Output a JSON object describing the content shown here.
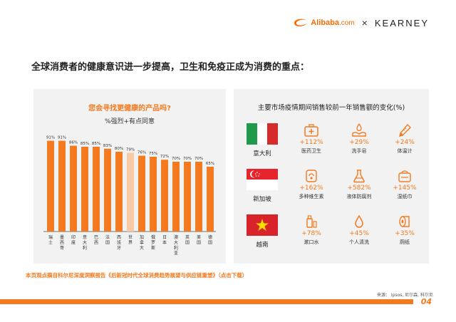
{
  "header": {
    "alibaba_brand": "Alibaba",
    "alibaba_suffix": ".com",
    "separator": "×",
    "partner": "KEARNEY"
  },
  "headline": "全球消费者的健康意识进一步提高，卫生和免疫正成为消费的重点：",
  "left_panel": {
    "title": "您会寻找更健康的产品吗?",
    "subtitle": "%强烈+有点同意"
  },
  "chart_data": {
    "type": "bar",
    "title": "您会寻找更健康的产品吗?",
    "subtitle": "%强烈+有点同意",
    "categories": [
      "瑞士",
      "墨西哥",
      "印度",
      "意大利",
      "巴西",
      "法国",
      "西班牙",
      "世界",
      "加拿大",
      "俄罗斯",
      "日本",
      "澳大利亚",
      "英国",
      "美国",
      "德国"
    ],
    "values": [
      91,
      91,
      86,
      85,
      85,
      83,
      80,
      79,
      76,
      75,
      72,
      70,
      70,
      70,
      65
    ],
    "value_labels": [
      "91%",
      "91%",
      "86%",
      "85%",
      "85%",
      "83%",
      "80%",
      "79%",
      "76%",
      "75%",
      "72%",
      "70%",
      "70%",
      "70%",
      "65%"
    ],
    "highlight_index": 7,
    "colors": {
      "bar": "#f47a1f",
      "highlight": "#f9c9a2"
    },
    "ylim": [
      0,
      100
    ],
    "grid": false
  },
  "right_panel": {
    "title": "主要市场疫情期间销售较前一年销售额的变化(%)",
    "countries": [
      {
        "name": "意大利",
        "flag": "italy",
        "metrics": [
          {
            "icon": "first-aid-kit-icon",
            "value": "+112%",
            "label": "医药卫生"
          },
          {
            "icon": "hand-wash-icon",
            "value": "+29%",
            "label": "洗手皂"
          },
          {
            "icon": "thermometer-icon",
            "value": "+24%",
            "label": "体温计"
          }
        ]
      },
      {
        "name": "新加坡",
        "flag": "singapore",
        "metrics": [
          {
            "icon": "pill-icon",
            "value": "+162%",
            "label": "多种维生素"
          },
          {
            "icon": "flask-icon",
            "value": "+582%",
            "label": "液体防腐剂"
          },
          {
            "icon": "wipes-icon",
            "value": "+145%",
            "label": "湿纸巾"
          }
        ]
      },
      {
        "name": "越南",
        "flag": "vietnam",
        "metrics": [
          {
            "icon": "mouthwash-icon",
            "value": "+78%",
            "label": "漱口水"
          },
          {
            "icon": "water-drop-icon",
            "value": "+45%",
            "label": "个人清洗"
          },
          {
            "icon": "tissue-roll-icon",
            "value": "+35%",
            "label": "厕纸"
          }
        ]
      }
    ]
  },
  "footnote": "本页观点摘自科尔尼深度洞察报告《后新冠时代全球消费趋势展望与供应链重塑》（点击下载）",
  "source": "来源： Ipsos, 尼尔森, 科尔尼",
  "page_number": "04",
  "colors": {
    "accent": "#f47a1f",
    "panel_bg": "#f2f2f2"
  }
}
